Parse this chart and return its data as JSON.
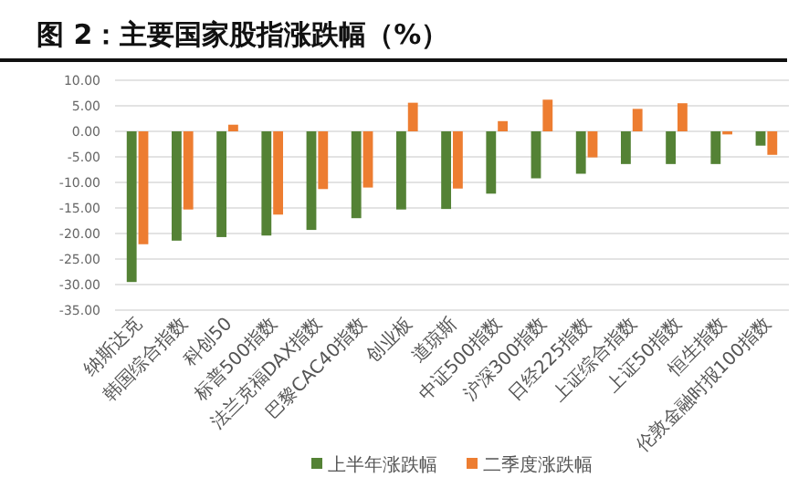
{
  "chart_data": {
    "type": "bar",
    "title": "图 2：主要国家股指涨跌幅（%）",
    "categories": [
      "纳斯达克",
      "韩国综合指数",
      "科创50",
      "标普500指数",
      "法兰克福DAX指数",
      "巴黎CAC40指数",
      "创业板",
      "道琼斯",
      "中证500指数",
      "沪深300指数",
      "日经225指数",
      "上证综合指数",
      "上证50指数",
      "恒生指数",
      "伦敦金融时报100指数"
    ],
    "series": [
      {
        "name": "上半年涨跌幅",
        "color": "#548235",
        "values": [
          -29.5,
          -21.4,
          -20.7,
          -20.4,
          -19.3,
          -17.0,
          -15.3,
          -15.2,
          -12.2,
          -9.2,
          -8.3,
          -6.4,
          -6.4,
          -6.4,
          -2.8
        ]
      },
      {
        "name": "二季度涨跌幅",
        "color": "#ed7d31",
        "values": [
          -22.1,
          -15.3,
          1.3,
          -16.3,
          -11.3,
          -11.0,
          5.6,
          -11.2,
          2.0,
          6.2,
          -5.1,
          4.4,
          5.5,
          -0.6,
          -4.6
        ]
      }
    ],
    "ylim": [
      -35,
      10
    ],
    "yticks": [
      {
        "value": 10,
        "label": "10.00"
      },
      {
        "value": 5,
        "label": "5.00"
      },
      {
        "value": 0,
        "label": "0.00"
      },
      {
        "value": -5,
        "label": "-5.00"
      },
      {
        "value": -10,
        "label": "-10.00"
      },
      {
        "value": -15,
        "label": "-15.00"
      },
      {
        "value": -20,
        "label": "-20.00"
      },
      {
        "value": -25,
        "label": "-25.00"
      },
      {
        "value": -30,
        "label": "-30.00"
      },
      {
        "value": -35,
        "label": "-35.00"
      }
    ],
    "grid": "y",
    "legend": "bottom"
  }
}
